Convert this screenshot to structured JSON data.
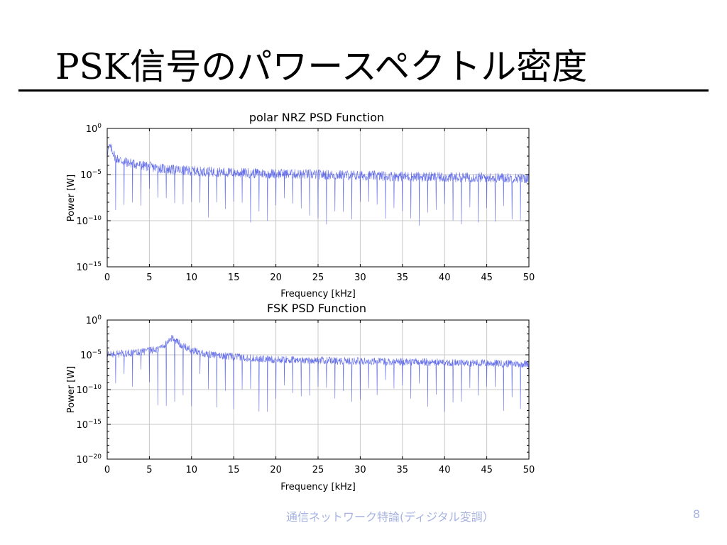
{
  "slide": {
    "title": "PSK信号のパワースペクトル密度",
    "footer": "通信ネットワーク特論(ディジタル変調）",
    "page_number": "8"
  },
  "colors": {
    "trace": "#3340e0",
    "grid": "#c9c9c9",
    "footer": "#a7b4e2"
  },
  "chart_data": [
    {
      "type": "line",
      "title": "polar NRZ PSD Function",
      "xlabel": "Frequency [kHz]",
      "ylabel": "Power [W]",
      "yscale": "log",
      "xlim": [
        0,
        50
      ],
      "ylim_exp": [
        -15,
        0
      ],
      "xticks": [
        0,
        5,
        10,
        15,
        20,
        25,
        30,
        35,
        40,
        45,
        50
      ],
      "yticks_exp": [
        0,
        -5,
        -10,
        -15
      ],
      "grid": true,
      "series": [
        {
          "x": [
            0,
            0.3,
            0.6,
            1,
            2,
            4,
            6,
            8,
            10,
            15,
            20,
            25,
            30,
            35,
            40,
            45,
            50
          ],
          "log10_envelope": [
            -2.5,
            -2.0,
            -2.4,
            -3.2,
            -3.6,
            -4.0,
            -4.3,
            -4.5,
            -4.6,
            -4.8,
            -4.9,
            -5.0,
            -5.1,
            -5.2,
            -5.3,
            -5.3,
            -5.4
          ],
          "null_spacing_khz": 1.0,
          "deepest_null_log10": -11.5
        }
      ]
    },
    {
      "type": "line",
      "title": "FSK PSD Function",
      "xlabel": "Frequency [kHz]",
      "ylabel": "Power [W]",
      "yscale": "log",
      "xlim": [
        0,
        50
      ],
      "ylim_exp": [
        -20,
        0
      ],
      "xticks": [
        0,
        5,
        10,
        15,
        20,
        25,
        30,
        35,
        40,
        45,
        50
      ],
      "yticks_exp": [
        0,
        -5,
        -10,
        -15,
        -20
      ],
      "grid": true,
      "series": [
        {
          "x": [
            0,
            2,
            4,
            6,
            7,
            7.8,
            8.5,
            10,
            12,
            15,
            20,
            25,
            30,
            35,
            40,
            45,
            50
          ],
          "log10_envelope": [
            -5.0,
            -4.8,
            -4.6,
            -4.2,
            -3.4,
            -2.5,
            -3.3,
            -4.4,
            -4.9,
            -5.3,
            -5.7,
            -5.8,
            -5.9,
            -6.0,
            -6.1,
            -6.2,
            -6.3
          ],
          "null_spacing_khz": 1.0,
          "deepest_null_log10": -15.0
        }
      ]
    }
  ]
}
